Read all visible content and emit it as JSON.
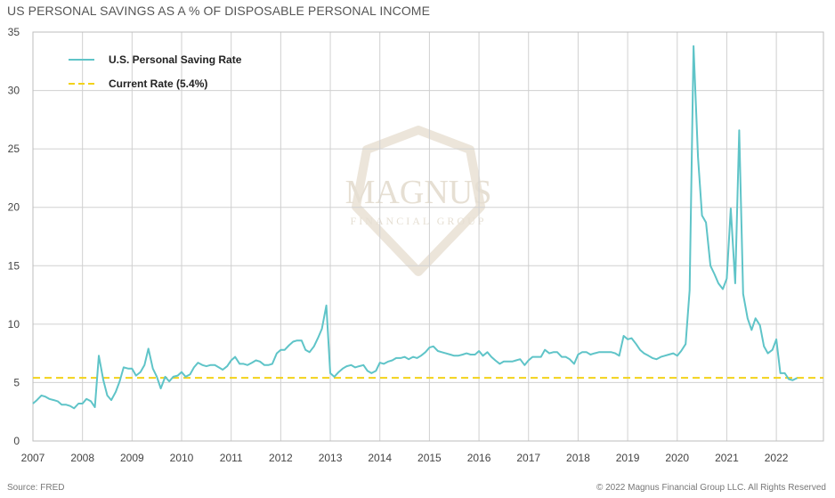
{
  "header": {
    "title": "US PERSONAL SAVINGS AS A % OF DISPOSABLE PERSONAL INCOME"
  },
  "footer": {
    "source": "Source: FRED",
    "copyright": "© 2022 Magnus Financial Group LLC. All Rights Reserved"
  },
  "watermark": {
    "line1": "MAGNUS",
    "line2": "FINANCIAL GROUP"
  },
  "chart_data": {
    "type": "line",
    "title": "US PERSONAL SAVINGS AS A % OF DISPOSABLE PERSONAL INCOME",
    "xlabel": "",
    "ylabel": "",
    "ylim": [
      0,
      35
    ],
    "xlim": [
      2007,
      2022.95
    ],
    "yticks": [
      "0",
      "5",
      "10",
      "15",
      "20",
      "25",
      "30",
      "35"
    ],
    "xticks": [
      "2007",
      "2008",
      "2009",
      "2010",
      "2011",
      "2012",
      "2013",
      "2014",
      "2015",
      "2016",
      "2017",
      "2018",
      "2019",
      "2020",
      "2021",
      "2022"
    ],
    "grid": true,
    "legend_position": "top-left",
    "colors": {
      "series": "#5fc4c8",
      "reference": "#f2d21a",
      "grid": "#d0d0d0"
    },
    "series": [
      {
        "name": "U.S. Personal Saving Rate",
        "points": [
          [
            2007.0,
            3.2
          ],
          [
            2007.08,
            3.5
          ],
          [
            2007.17,
            3.9
          ],
          [
            2007.25,
            3.8
          ],
          [
            2007.33,
            3.6
          ],
          [
            2007.42,
            3.5
          ],
          [
            2007.5,
            3.4
          ],
          [
            2007.58,
            3.1
          ],
          [
            2007.67,
            3.1
          ],
          [
            2007.75,
            3.0
          ],
          [
            2007.83,
            2.8
          ],
          [
            2007.92,
            3.2
          ],
          [
            2008.0,
            3.2
          ],
          [
            2008.08,
            3.6
          ],
          [
            2008.17,
            3.4
          ],
          [
            2008.25,
            2.9
          ],
          [
            2008.33,
            7.3
          ],
          [
            2008.42,
            5.2
          ],
          [
            2008.5,
            3.9
          ],
          [
            2008.58,
            3.5
          ],
          [
            2008.67,
            4.2
          ],
          [
            2008.75,
            5.1
          ],
          [
            2008.83,
            6.3
          ],
          [
            2008.92,
            6.2
          ],
          [
            2009.0,
            6.2
          ],
          [
            2009.08,
            5.6
          ],
          [
            2009.17,
            5.9
          ],
          [
            2009.25,
            6.5
          ],
          [
            2009.33,
            7.9
          ],
          [
            2009.42,
            6.2
          ],
          [
            2009.5,
            5.5
          ],
          [
            2009.58,
            4.5
          ],
          [
            2009.67,
            5.5
          ],
          [
            2009.75,
            5.1
          ],
          [
            2009.83,
            5.5
          ],
          [
            2009.92,
            5.6
          ],
          [
            2010.0,
            5.9
          ],
          [
            2010.08,
            5.5
          ],
          [
            2010.17,
            5.7
          ],
          [
            2010.25,
            6.3
          ],
          [
            2010.33,
            6.7
          ],
          [
            2010.42,
            6.5
          ],
          [
            2010.5,
            6.4
          ],
          [
            2010.58,
            6.5
          ],
          [
            2010.67,
            6.5
          ],
          [
            2010.75,
            6.3
          ],
          [
            2010.83,
            6.1
          ],
          [
            2010.92,
            6.4
          ],
          [
            2011.0,
            6.9
          ],
          [
            2011.08,
            7.2
          ],
          [
            2011.17,
            6.6
          ],
          [
            2011.25,
            6.6
          ],
          [
            2011.33,
            6.5
          ],
          [
            2011.42,
            6.7
          ],
          [
            2011.5,
            6.9
          ],
          [
            2011.58,
            6.8
          ],
          [
            2011.67,
            6.5
          ],
          [
            2011.75,
            6.5
          ],
          [
            2011.83,
            6.6
          ],
          [
            2011.92,
            7.5
          ],
          [
            2012.0,
            7.8
          ],
          [
            2012.08,
            7.8
          ],
          [
            2012.17,
            8.2
          ],
          [
            2012.25,
            8.5
          ],
          [
            2012.33,
            8.6
          ],
          [
            2012.42,
            8.6
          ],
          [
            2012.5,
            7.8
          ],
          [
            2012.58,
            7.6
          ],
          [
            2012.67,
            8.1
          ],
          [
            2012.75,
            8.8
          ],
          [
            2012.83,
            9.6
          ],
          [
            2012.92,
            11.6
          ],
          [
            2013.0,
            5.8
          ],
          [
            2013.08,
            5.5
          ],
          [
            2013.17,
            5.9
          ],
          [
            2013.25,
            6.2
          ],
          [
            2013.33,
            6.4
          ],
          [
            2013.42,
            6.5
          ],
          [
            2013.5,
            6.3
          ],
          [
            2013.58,
            6.4
          ],
          [
            2013.67,
            6.5
          ],
          [
            2013.75,
            6.0
          ],
          [
            2013.83,
            5.8
          ],
          [
            2013.92,
            6.0
          ],
          [
            2014.0,
            6.7
          ],
          [
            2014.08,
            6.6
          ],
          [
            2014.17,
            6.8
          ],
          [
            2014.25,
            6.9
          ],
          [
            2014.33,
            7.1
          ],
          [
            2014.42,
            7.1
          ],
          [
            2014.5,
            7.2
          ],
          [
            2014.58,
            7.0
          ],
          [
            2014.67,
            7.2
          ],
          [
            2014.75,
            7.1
          ],
          [
            2014.83,
            7.3
          ],
          [
            2014.92,
            7.6
          ],
          [
            2015.0,
            8.0
          ],
          [
            2015.08,
            8.1
          ],
          [
            2015.17,
            7.7
          ],
          [
            2015.25,
            7.6
          ],
          [
            2015.33,
            7.5
          ],
          [
            2015.42,
            7.4
          ],
          [
            2015.5,
            7.3
          ],
          [
            2015.58,
            7.3
          ],
          [
            2015.67,
            7.4
          ],
          [
            2015.75,
            7.5
          ],
          [
            2015.83,
            7.4
          ],
          [
            2015.92,
            7.4
          ],
          [
            2016.0,
            7.7
          ],
          [
            2016.08,
            7.3
          ],
          [
            2016.17,
            7.6
          ],
          [
            2016.25,
            7.2
          ],
          [
            2016.33,
            6.9
          ],
          [
            2016.42,
            6.6
          ],
          [
            2016.5,
            6.8
          ],
          [
            2016.58,
            6.8
          ],
          [
            2016.67,
            6.8
          ],
          [
            2016.75,
            6.9
          ],
          [
            2016.83,
            7.0
          ],
          [
            2016.92,
            6.5
          ],
          [
            2017.0,
            6.9
          ],
          [
            2017.08,
            7.2
          ],
          [
            2017.17,
            7.2
          ],
          [
            2017.25,
            7.2
          ],
          [
            2017.33,
            7.8
          ],
          [
            2017.42,
            7.5
          ],
          [
            2017.5,
            7.6
          ],
          [
            2017.58,
            7.6
          ],
          [
            2017.67,
            7.2
          ],
          [
            2017.75,
            7.2
          ],
          [
            2017.83,
            7.0
          ],
          [
            2017.92,
            6.6
          ],
          [
            2018.0,
            7.4
          ],
          [
            2018.08,
            7.6
          ],
          [
            2018.17,
            7.6
          ],
          [
            2018.25,
            7.4
          ],
          [
            2018.33,
            7.5
          ],
          [
            2018.42,
            7.6
          ],
          [
            2018.5,
            7.6
          ],
          [
            2018.58,
            7.6
          ],
          [
            2018.67,
            7.6
          ],
          [
            2018.75,
            7.5
          ],
          [
            2018.83,
            7.3
          ],
          [
            2018.92,
            9.0
          ],
          [
            2019.0,
            8.7
          ],
          [
            2019.08,
            8.8
          ],
          [
            2019.17,
            8.3
          ],
          [
            2019.25,
            7.8
          ],
          [
            2019.33,
            7.5
          ],
          [
            2019.42,
            7.3
          ],
          [
            2019.5,
            7.1
          ],
          [
            2019.58,
            7.0
          ],
          [
            2019.67,
            7.2
          ],
          [
            2019.75,
            7.3
          ],
          [
            2019.83,
            7.4
          ],
          [
            2019.92,
            7.5
          ],
          [
            2020.0,
            7.3
          ],
          [
            2020.08,
            7.7
          ],
          [
            2020.17,
            8.3
          ],
          [
            2020.25,
            12.9
          ],
          [
            2020.33,
            33.8
          ],
          [
            2020.42,
            24.3
          ],
          [
            2020.5,
            19.3
          ],
          [
            2020.58,
            18.7
          ],
          [
            2020.67,
            15.0
          ],
          [
            2020.75,
            14.3
          ],
          [
            2020.83,
            13.5
          ],
          [
            2020.92,
            13.0
          ],
          [
            2021.0,
            13.9
          ],
          [
            2021.08,
            19.9
          ],
          [
            2021.17,
            13.5
          ],
          [
            2021.25,
            26.6
          ],
          [
            2021.33,
            12.6
          ],
          [
            2021.42,
            10.5
          ],
          [
            2021.5,
            9.5
          ],
          [
            2021.58,
            10.5
          ],
          [
            2021.67,
            9.9
          ],
          [
            2021.75,
            8.1
          ],
          [
            2021.83,
            7.5
          ],
          [
            2021.92,
            7.8
          ],
          [
            2022.0,
            8.7
          ],
          [
            2022.08,
            5.8
          ],
          [
            2022.17,
            5.8
          ],
          [
            2022.25,
            5.3
          ],
          [
            2022.33,
            5.2
          ],
          [
            2022.42,
            5.4
          ]
        ]
      },
      {
        "name": "Current Rate (5.4%)",
        "reference_value": 5.4
      }
    ]
  }
}
